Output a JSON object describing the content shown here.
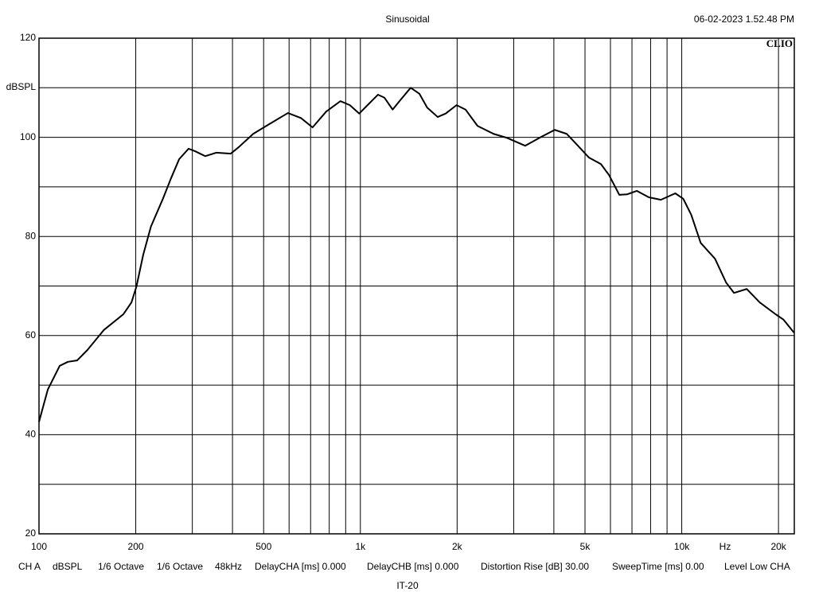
{
  "chart_data": {
    "type": "line",
    "title": "Sinusoidal",
    "timestamp": "06-02-2023 1.52.48 PM",
    "logo": "CLIO",
    "y_label": "dBSPL",
    "x_label": "Hz",
    "subtitle": "IT-20",
    "footer": [
      "CH A",
      "dBSPL",
      "1/6 Octave",
      "1/6 Octave",
      "48kHz",
      "DelayCHA [ms] 0.000",
      "DelayCHB [ms] 0.000",
      "Distortion Rise [dB] 30.00",
      "SweepTime [ms] 0.00",
      "Level Low CHA"
    ],
    "x_scale": "log",
    "grid": true,
    "color": "#000000",
    "xlim": [
      100,
      22400
    ],
    "ylim": [
      20,
      120
    ],
    "xticks": [
      100,
      200,
      500,
      {
        "value": 1000,
        "label": "1k"
      },
      {
        "value": 2000,
        "label": "2k"
      },
      {
        "value": 5000,
        "label": "5k"
      },
      {
        "value": 10000,
        "label": "10k"
      },
      {
        "value": 20000,
        "label": "20k"
      }
    ],
    "xminor": [
      300,
      400,
      600,
      700,
      800,
      900,
      3000,
      4000,
      6000,
      7000,
      8000,
      9000
    ],
    "yticks": [
      20,
      40,
      60,
      80,
      100,
      120
    ],
    "yminor": [
      30,
      50,
      70,
      90,
      110
    ],
    "x": [
      100,
      106.5,
      116,
      123,
      131.5,
      141.5,
      159,
      183,
      194,
      201,
      211,
      223,
      243,
      257,
      273,
      292,
      306,
      329,
      356,
      395,
      418,
      464,
      525,
      595,
      653,
      710,
      783,
      867,
      927,
      992,
      1053,
      1134,
      1188,
      1260,
      1335,
      1434,
      1526,
      1614,
      1740,
      1843,
      1992,
      2124,
      2315,
      2596,
      2856,
      3256,
      3656,
      4025,
      4384,
      4722,
      5146,
      5605,
      5937,
      6393,
      6768,
      7247,
      7898,
      8614,
      9547,
      10107,
      10700,
      11454,
      12690,
      13740,
      14544,
      15924,
      17480,
      19590,
      20740,
      22340
    ],
    "values": [
      42.6,
      49.1,
      53.9,
      54.7,
      55.0,
      57.1,
      61.1,
      64.3,
      66.7,
      69.9,
      76.3,
      82.0,
      87.6,
      91.6,
      95.6,
      97.7,
      97.2,
      96.2,
      96.9,
      96.7,
      98.0,
      100.7,
      102.8,
      104.9,
      103.9,
      102.0,
      105.2,
      107.3,
      106.5,
      104.8,
      106.5,
      108.6,
      108.0,
      105.6,
      107.6,
      110.0,
      108.8,
      106.0,
      104.1,
      104.8,
      106.5,
      105.6,
      102.3,
      100.7,
      99.9,
      98.3,
      100.1,
      101.5,
      100.7,
      98.5,
      95.9,
      94.6,
      92.4,
      88.4,
      88.5,
      89.2,
      87.9,
      87.4,
      88.7,
      87.6,
      84.4,
      78.7,
      75.5,
      70.7,
      68.6,
      69.4,
      66.7,
      64.3,
      63.2,
      60.6
    ]
  }
}
